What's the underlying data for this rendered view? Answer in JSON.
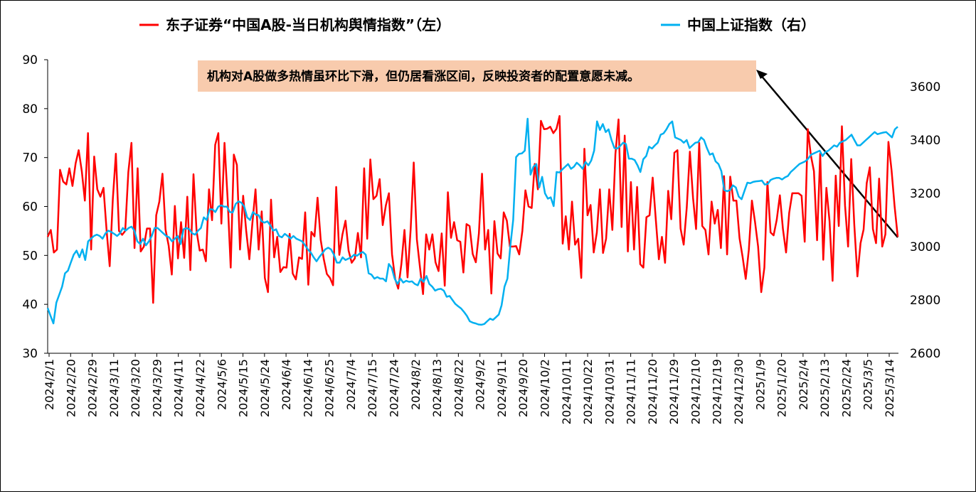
{
  "chart_data": {
    "type": "line",
    "legend": {
      "placement": "top",
      "items": [
        {
          "label": "东子证券“中国A股-当日机构舆情指数”（左）",
          "color": "#ff0000"
        },
        {
          "label": "中国上证指数（右）",
          "color": "#00b0f0"
        }
      ]
    },
    "annotation": {
      "text": "机构对A股做多热情虽环比下滑，但仍居看涨区间，反映投资者的配置意愿未减。",
      "background": "#f8cbad"
    },
    "y_left": {
      "range": [
        30,
        90
      ],
      "ticks": [
        "30",
        "40",
        "50",
        "60",
        "70",
        "80",
        "90"
      ]
    },
    "y_right": {
      "range": [
        2600,
        3700
      ],
      "ticks": [
        "2600",
        "2800",
        "3000",
        "3200",
        "3400",
        "3600"
      ]
    },
    "x_ticks": [
      "2024/2/1",
      "2024/2/20",
      "2024/2/29",
      "2024/3/11",
      "2024/3/20",
      "2024/3/29",
      "2024/4/11",
      "2024/4/22",
      "2024/5/6",
      "2024/5/15",
      "2024/5/24",
      "2024/6/4",
      "2024/6/14",
      "2024/6/25",
      "2024/7/4",
      "2024/7/15",
      "2024/7/24",
      "2024/8/2",
      "2024/8/13",
      "2024/8/22",
      "2024/9/2",
      "2024/9/11",
      "2024/9/20",
      "2024/10/2",
      "2024/10/11",
      "2024/10/22",
      "2024/10/31",
      "2024/11/11",
      "2024/11/20",
      "2024/11/29",
      "2024/12/10",
      "2024/12/19",
      "2024/12/30",
      "2025/1/9",
      "2025/1/20",
      "2025/2/4",
      "2025/2/13",
      "2025/2/24",
      "2025/3/5",
      "2025/3/14"
    ],
    "grid": false,
    "series": [
      {
        "name": "东子证券“中国A股-当日机构舆情指数”（左）",
        "axis": "left",
        "color": "#ff0000",
        "values": [
          53.8,
          55.2,
          50.6,
          51.2,
          67.5,
          65.1,
          64.5,
          67.8,
          64.2,
          68.8,
          71.5,
          67.2,
          61.2,
          75.0,
          51.2,
          70.2,
          63.5,
          62.0,
          63.8,
          55.0,
          47.8,
          61.5,
          70.8,
          55.0,
          54.2,
          55.0,
          67.0,
          73.0,
          51.5,
          67.8,
          50.8,
          51.8,
          55.5,
          55.5,
          40.3,
          58.2,
          61.0,
          66.7,
          55.3,
          52.0,
          46.1,
          60.1,
          49.4,
          56.8,
          49.5,
          62.0,
          47.0,
          66.6,
          55.0,
          51.0,
          51.2,
          48.8,
          63.5,
          57.2,
          72.6,
          75.0,
          56.5,
          73.0,
          61.5,
          47.5,
          70.6,
          68.5,
          51.2,
          62.2,
          55.0,
          49.2,
          56.6,
          63.5,
          51.2,
          59.0,
          45.4,
          42.5,
          61.4,
          49.6,
          53.8,
          46.6,
          47.6,
          47.5,
          54.4,
          46.3,
          45.1,
          49.6,
          49.3,
          58.8,
          44.0,
          54.8,
          53.9,
          61.8,
          53.2,
          49.2,
          46.2,
          45.4,
          43.9,
          64.0,
          50.1,
          54.2,
          57.1,
          51.0,
          48.5,
          49.4,
          54.6,
          49.6,
          67.8,
          53.4,
          69.6,
          61.5,
          62.2,
          65.6,
          56.2,
          60.2,
          62.7,
          50.2,
          45.2,
          43.2,
          48.2,
          55.2,
          45.5,
          55.4,
          69.0,
          53.3,
          47.5,
          42.1,
          54.3,
          51.2,
          54.3,
          48.6,
          46.8,
          54.5,
          43.8,
          62.9,
          53.6,
          56.8,
          53.1,
          52.8,
          46.5,
          56.4,
          56.0,
          50.3,
          48.6,
          54.5,
          66.7,
          51.2,
          55.2,
          42.2,
          57.0,
          50.4,
          49.4,
          58.8,
          57.1,
          51.8,
          51.8,
          51.9,
          50.2,
          55.0,
          63.3,
          60.0,
          59.7,
          68.7,
          63.5,
          77.5,
          75.8,
          75.9,
          76.3,
          75.0,
          75.9,
          78.5,
          52.4,
          58.0,
          51.2,
          61.0,
          52.2,
          53.4,
          45.4,
          71.8,
          58.2,
          60.3,
          50.6,
          54.7,
          63.5,
          50.5,
          53.4,
          63.5,
          55.2,
          70.7,
          77.8,
          55.8,
          74.5,
          50.8,
          65.0,
          51.2,
          64.0,
          48.2,
          47.5,
          57.8,
          58.2,
          65.9,
          57.5,
          49.2,
          53.8,
          48.5,
          63.2,
          57.4,
          71.0,
          71.5,
          55.5,
          52.2,
          59.8,
          71.2,
          61.8,
          55.4,
          73.0,
          56.0,
          55.2,
          50.2,
          61.0,
          56.5,
          59.3,
          51.5,
          66.2,
          50.2,
          66.1,
          61.2,
          61.2,
          53.5,
          49.7,
          45.2,
          51.2,
          61.2,
          56.8,
          51.8,
          42.5,
          47.5,
          65.0,
          54.7,
          54.1,
          57.3,
          62.3,
          55.4,
          50.6,
          58.7,
          62.7,
          62.7,
          62.7,
          62.2,
          52.8,
          75.8,
          70.4,
          67.2,
          53.1,
          70.8,
          49.1,
          63.8,
          57.0,
          44.8,
          66.3,
          56.0,
          76.4,
          60.2,
          51.8,
          69.7,
          56.3,
          45.7,
          52.5,
          55.3,
          64.8,
          68.0,
          55.4,
          52.5,
          65.7,
          51.8,
          54.3,
          73.2,
          67.4,
          60.0,
          53.8
        ]
      },
      {
        "name": "中国上证指数（右）",
        "axis": "right",
        "color": "#00b0f0",
        "values": [
          2770,
          2740,
          2712,
          2790,
          2820,
          2850,
          2900,
          2910,
          2940,
          2970,
          2985,
          2960,
          2990,
          2950,
          3020,
          3030,
          3040,
          3045,
          3040,
          3030,
          3050,
          3060,
          3055,
          3048,
          3040,
          3050,
          3070,
          3060,
          3070,
          3075,
          3060,
          3020,
          3010,
          3030,
          3005,
          3020,
          3040,
          3070,
          3070,
          3060,
          3050,
          3040,
          3035,
          3020,
          3030,
          3040,
          3010,
          3065,
          3070,
          3065,
          3050,
          3045,
          3060,
          3070,
          3110,
          3100,
          3140,
          3140,
          3130,
          3150,
          3155,
          3150,
          3150,
          3130,
          3128,
          3160,
          3170,
          3165,
          3150,
          3110,
          3100,
          3130,
          3120,
          3118,
          3095,
          3090,
          3095,
          3080,
          3060,
          3065,
          3040,
          3035,
          3048,
          3040,
          3030,
          3040,
          3030,
          3025,
          3020,
          3005,
          2990,
          2978,
          2960,
          2945,
          2962,
          2975,
          2990,
          2996,
          2990,
          2970,
          2940,
          2940,
          2960,
          2950,
          2955,
          2960,
          2970,
          2966,
          2975,
          2980,
          2970,
          2900,
          2895,
          2880,
          2886,
          2880,
          2880,
          2870,
          2935,
          2920,
          2880,
          2860,
          2880,
          2865,
          2872,
          2868,
          2870,
          2860,
          2855,
          2880,
          2868,
          2890,
          2860,
          2850,
          2835,
          2840,
          2842,
          2835,
          2812,
          2815,
          2800,
          2785,
          2776,
          2768,
          2755,
          2740,
          2720,
          2715,
          2712,
          2708,
          2707,
          2710,
          2720,
          2730,
          2725,
          2735,
          2745,
          2780,
          2850,
          2880,
          3000,
          3100,
          3336,
          3348,
          3350,
          3360,
          3480,
          3270,
          3300,
          3310,
          3222,
          3262,
          3200,
          3180,
          3185,
          3152,
          3280,
          3278,
          3290,
          3300,
          3310,
          3292,
          3300,
          3315,
          3305,
          3292,
          3318,
          3305,
          3323,
          3360,
          3470,
          3438,
          3460,
          3430,
          3440,
          3400,
          3370,
          3368,
          3378,
          3390,
          3385,
          3330,
          3330,
          3325,
          3305,
          3280,
          3328,
          3340,
          3375,
          3368,
          3380,
          3390,
          3420,
          3425,
          3440,
          3460,
          3470,
          3410,
          3405,
          3400,
          3390,
          3400,
          3370,
          3380,
          3390,
          3392,
          3410,
          3400,
          3370,
          3345,
          3350,
          3320,
          3310,
          3283,
          3212,
          3208,
          3212,
          3230,
          3222,
          3188,
          3178,
          3210,
          3240,
          3238,
          3243,
          3245,
          3246,
          3248,
          3233,
          3235,
          3250,
          3255,
          3258,
          3258,
          3252,
          3260,
          3265,
          3280,
          3290,
          3300,
          3310,
          3315,
          3320,
          3330,
          3345,
          3350,
          3355,
          3360,
          3340,
          3355,
          3360,
          3370,
          3380,
          3375,
          3390,
          3395,
          3400,
          3410,
          3420,
          3400,
          3380,
          3380,
          3390,
          3400,
          3410,
          3420,
          3430,
          3422,
          3425,
          3428,
          3430,
          3420,
          3410,
          3440,
          3450
        ]
      }
    ]
  }
}
